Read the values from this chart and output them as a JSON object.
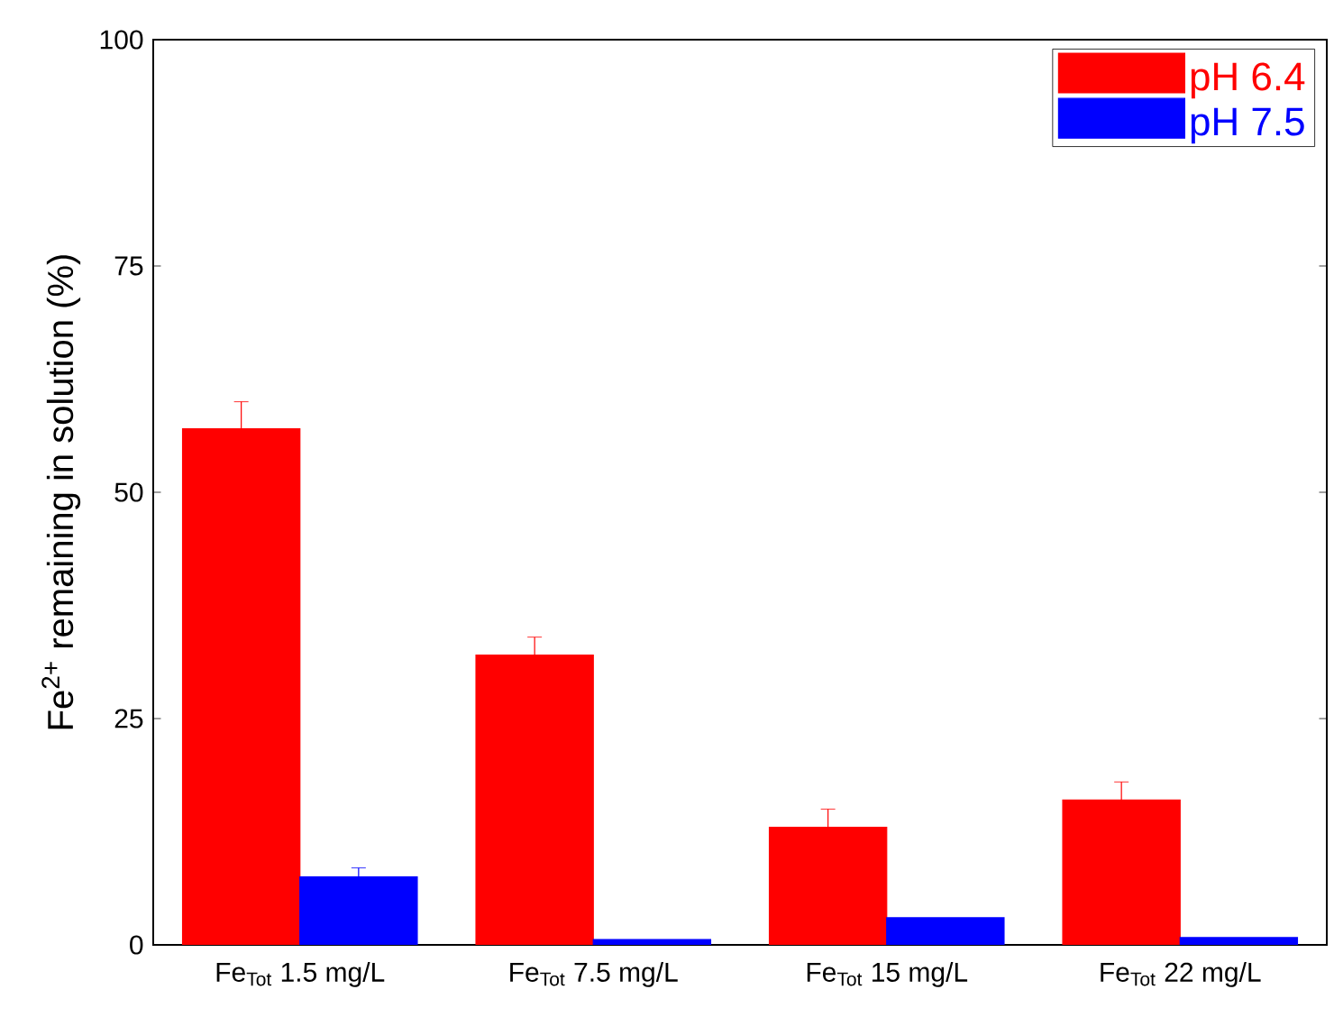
{
  "chart_data": {
    "type": "bar",
    "ylabel": "Fe$^{2+}$ remaining in solution (%)",
    "categories": [
      "Fe$_{Tot}$ 1.5 mg/L",
      "Fe$_{Tot}$ 7.5 mg/L",
      "Fe$_{Tot}$ 15 mg/L",
      "Fe$_{Tot}$ 22 mg/L"
    ],
    "series": [
      {
        "name": "pH 6.4",
        "color": "#ff0000",
        "values": [
          57,
          32,
          13,
          16
        ],
        "errors": [
          3,
          2,
          2,
          2
        ]
      },
      {
        "name": "pH 7.5",
        "color": "#0000ff",
        "values": [
          7.5,
          0.6,
          3,
          0.8
        ],
        "errors": [
          1,
          null,
          null,
          null
        ]
      }
    ],
    "ylim": [
      0,
      100
    ],
    "yticks": [
      0,
      25,
      50,
      75,
      100
    ],
    "grid": false,
    "legend": "top right"
  }
}
